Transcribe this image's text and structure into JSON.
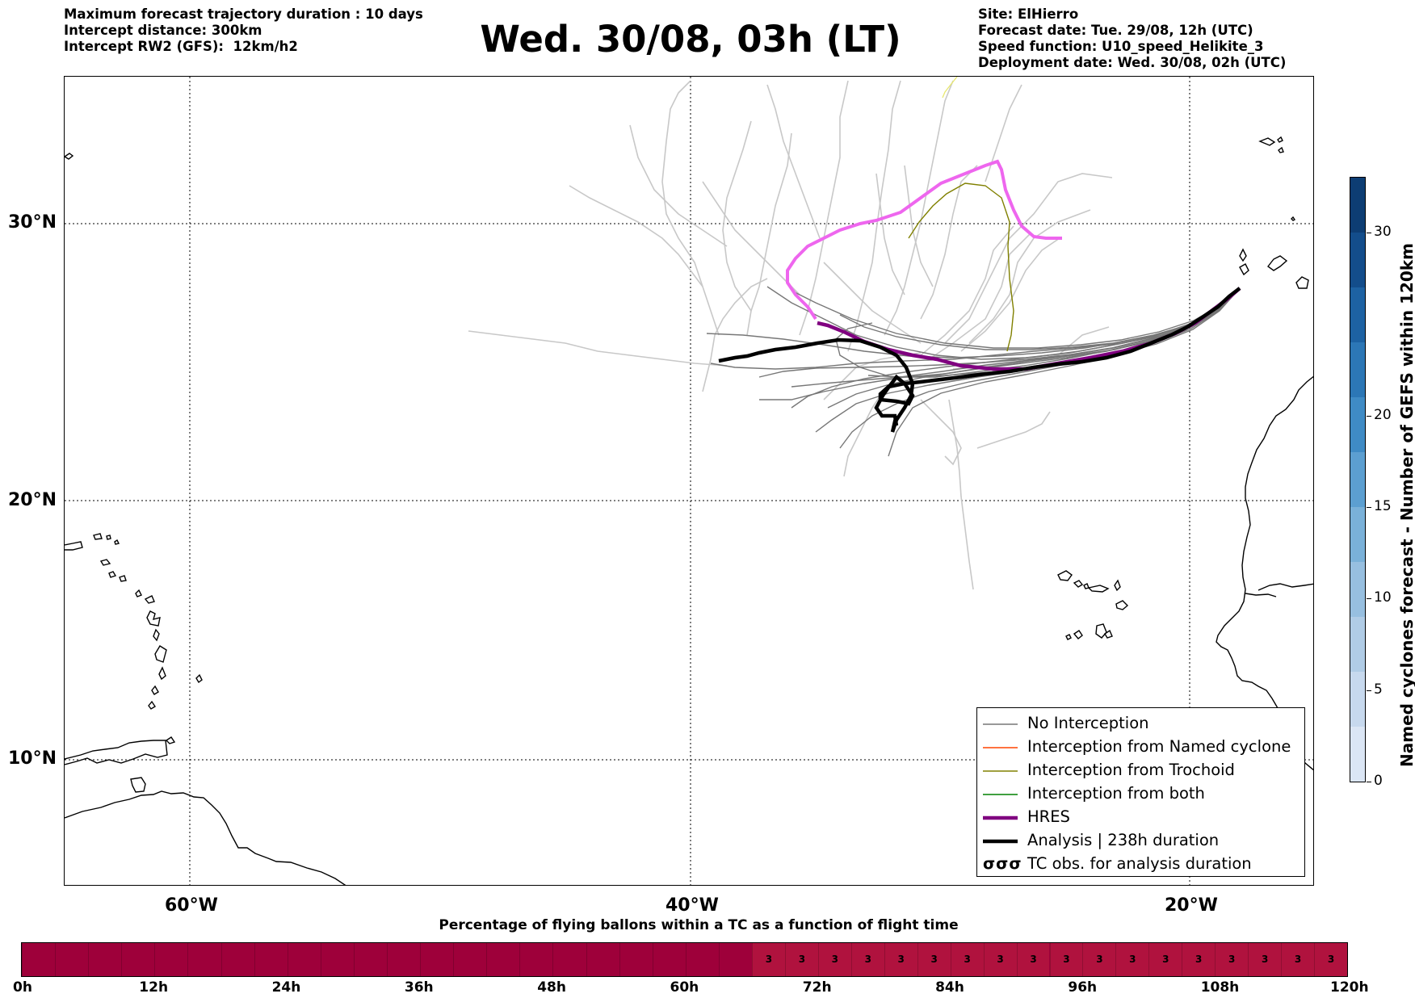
{
  "header": {
    "left_lines": [
      "Maximum forecast trajectory duration : 10 days",
      "Intercept distance: 300km",
      "Intercept RW2 (GFS):  12km/h2"
    ],
    "title": "Wed. 30/08, 03h (LT)",
    "right_lines": [
      "Site: ElHierro",
      "Forecast date: Tue. 29/08, 12h (UTC)",
      "Speed function: U10_speed_Helikite_3",
      "Deployment date: Wed. 30/08, 02h (UTC)"
    ]
  },
  "map": {
    "lat_labels": [
      "30°N",
      "20°N",
      "10°N"
    ],
    "lon_labels": [
      "60°W",
      "40°W",
      "20°W"
    ],
    "extent": {
      "lon_min": -65,
      "lon_max": -15,
      "lat_min": 5.3,
      "lat_max": 34.6
    },
    "colors": {
      "no_interception": "#777777",
      "light_members": "#c8c8c8",
      "trochoid": "#808000",
      "named_cyclone": "#ff4500",
      "both": "#008000",
      "hres": "#800080",
      "analysis": "#000000",
      "pink_member": "#ee66ee"
    }
  },
  "legend": {
    "items": [
      {
        "label": "No Interception",
        "color": "#777777",
        "weight": "thin"
      },
      {
        "label": "Interception from Named cyclone",
        "color": "#ff4500",
        "weight": "thin"
      },
      {
        "label": "Interception from Trochoid",
        "color": "#808000",
        "weight": "thin"
      },
      {
        "label": "Interception from both",
        "color": "#008000",
        "weight": "thin"
      },
      {
        "label": "HRES",
        "color": "#800080",
        "weight": "thick"
      },
      {
        "label": "Analysis | 238h duration",
        "color": "#000000",
        "weight": "thick"
      },
      {
        "label": "TC obs. for analysis duration",
        "color": "#000000",
        "weight": "symbol",
        "symbol": "σσσ"
      }
    ]
  },
  "colorbar": {
    "title": "Named cyclones forecast - Number of GEFS within 120km",
    "ticks": [
      "0",
      "5",
      "10",
      "15",
      "20",
      "30"
    ],
    "tick_values": [
      0,
      5,
      10,
      15,
      20,
      30
    ],
    "max": 33,
    "segment_colors": [
      "#dbe6f5",
      "#c7d9ee",
      "#b0cce6",
      "#97bfe0",
      "#7ab1d9",
      "#5c9fd1",
      "#3f8bc5",
      "#2c77b6",
      "#1d62a3",
      "#134d8b",
      "#0d3d73"
    ]
  },
  "flight_bar": {
    "title": "Percentage of flying ballons within a TC as a function of flight time",
    "tick_labels": [
      "0h",
      "12h",
      "24h",
      "36h",
      "48h",
      "60h",
      "72h",
      "84h",
      "96h",
      "108h",
      "120h"
    ],
    "cells": [
      "",
      "",
      "",
      "",
      "",
      "",
      "",
      "",
      "",
      "",
      "",
      "",
      "",
      "",
      "",
      "",
      "",
      "",
      "",
      "",
      "",
      "",
      "3",
      "3",
      "3",
      "3",
      "3",
      "3",
      "3",
      "3",
      "3",
      "3",
      "3",
      "3",
      "3",
      "3",
      "3",
      "3",
      "3",
      "3"
    ],
    "color_empty": "#9e003a",
    "color_value": "#b0123e"
  }
}
